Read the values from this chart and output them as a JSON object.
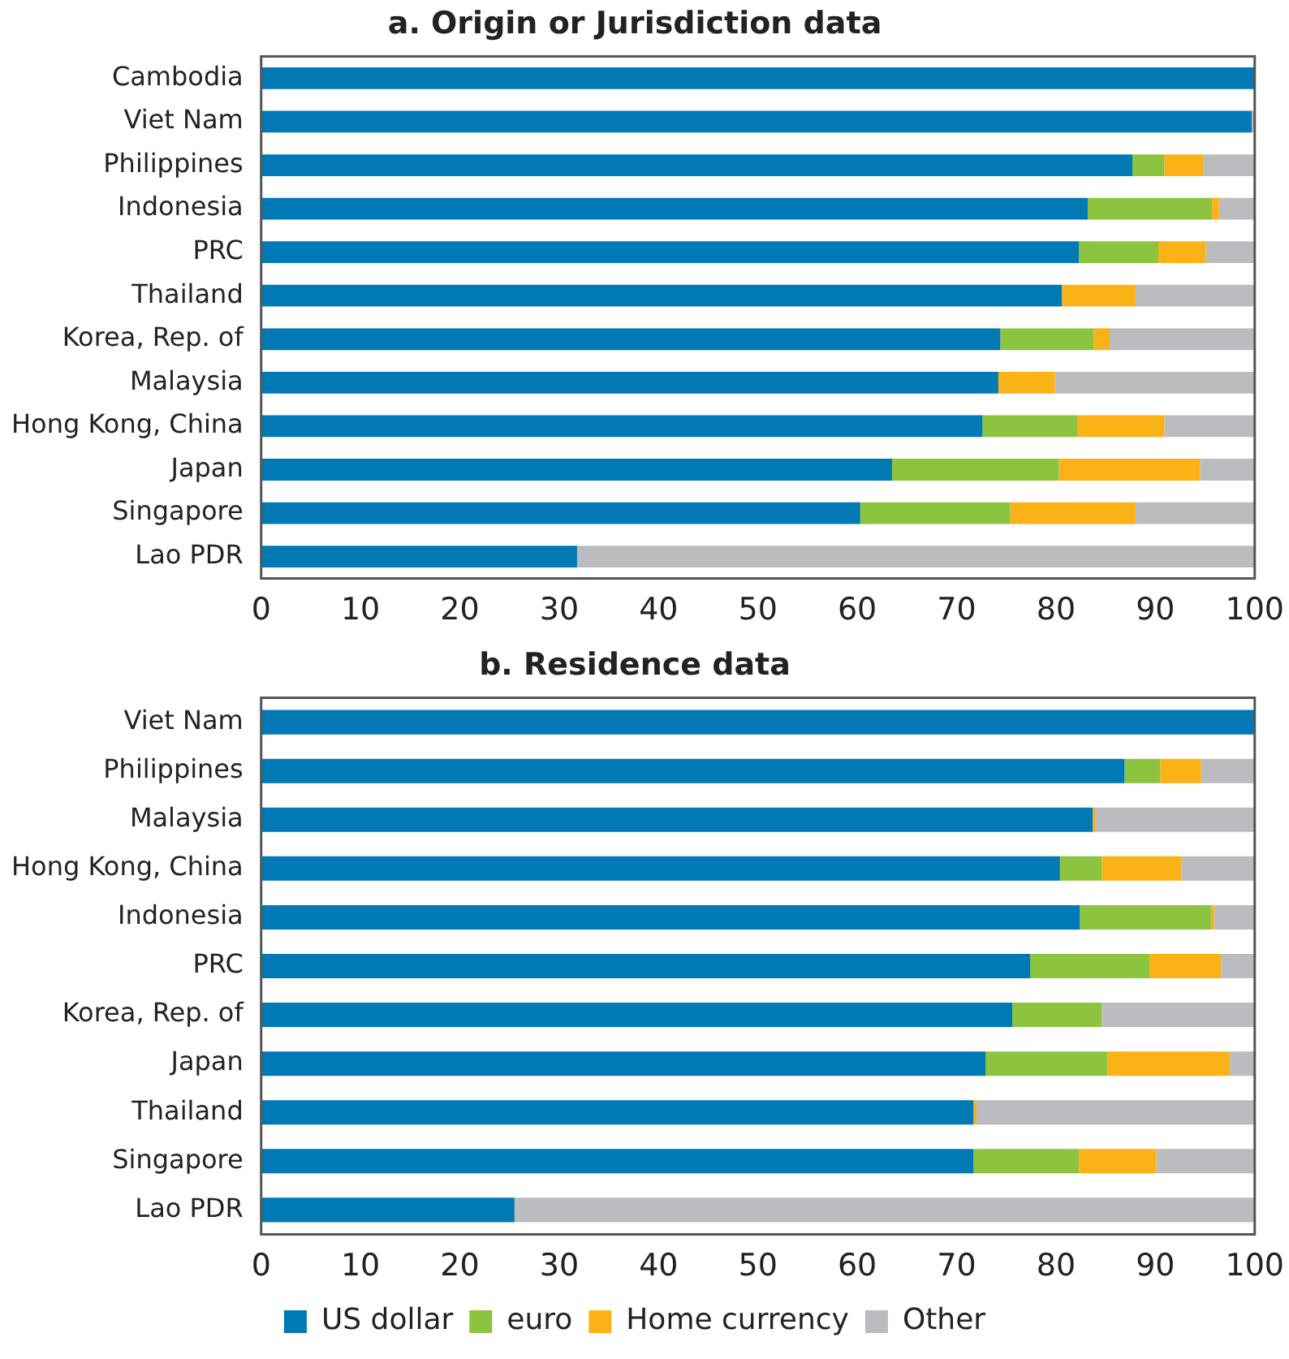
{
  "chart_data": [
    {
      "type": "bar",
      "title": "a. Origin or Jurisdiction data",
      "orientation": "horizontal",
      "stacked": true,
      "legend": false,
      "categories": [
        "Cambodia",
        "Viet Nam",
        "Philippines",
        "Indonesia",
        "PRC",
        "Thailand",
        "Korea, Rep. of",
        "Malaysia",
        "Hong Kong, China",
        "Japan",
        "Singapore",
        "Lao PDR"
      ],
      "xlim": [
        0,
        100
      ],
      "xticks": [
        0,
        10,
        20,
        30,
        40,
        50,
        60,
        70,
        80,
        90,
        100
      ],
      "series": [
        {
          "color": "#0079b5",
          "values": [
            100,
            99.7,
            87.7,
            83.2,
            82.3,
            80.6,
            74.4,
            74.2,
            72.6,
            63.5,
            60.3,
            31.8
          ]
        },
        {
          "color": "#8cc43f",
          "values": [
            0,
            0,
            3.2,
            12.5,
            8.0,
            0,
            9.4,
            0,
            9.6,
            16.8,
            15.1,
            0
          ]
        },
        {
          "color": "#fbb217",
          "values": [
            0,
            0,
            3.9,
            0.7,
            4.8,
            7.4,
            1.6,
            5.7,
            8.7,
            14.2,
            12.6,
            0
          ]
        },
        {
          "color": "#bbbcbf",
          "values": [
            0,
            0.3,
            5.2,
            3.6,
            4.9,
            12.0,
            14.6,
            20.1,
            9.1,
            5.5,
            12.0,
            68.2
          ]
        }
      ]
    },
    {
      "type": "bar",
      "title": "b. Residence data",
      "orientation": "horizontal",
      "stacked": true,
      "legend": "bottom",
      "categories": [
        "Viet Nam",
        "Philippines",
        "Malaysia",
        "Hong Kong, China",
        "Indonesia",
        "PRC",
        "Korea, Rep. of",
        "Japan",
        "Thailand",
        "Singapore",
        "Lao PDR"
      ],
      "xlim": [
        0,
        100
      ],
      "xticks": [
        0,
        10,
        20,
        30,
        40,
        50,
        60,
        70,
        80,
        90,
        100
      ],
      "series": [
        {
          "name": "US dollar",
          "color": "#0079b5",
          "values": [
            100,
            86.9,
            83.7,
            80.4,
            82.4,
            77.4,
            75.6,
            72.9,
            71.7,
            71.7,
            25.5
          ]
        },
        {
          "name": "euro",
          "color": "#8cc43f",
          "values": [
            0,
            3.6,
            0,
            4.2,
            13.2,
            12.0,
            9.0,
            12.3,
            0,
            10.6,
            0
          ]
        },
        {
          "name": "Home currency",
          "color": "#fbb217",
          "values": [
            0,
            4.1,
            0.3,
            8.0,
            0.3,
            7.2,
            0,
            12.3,
            0.3,
            7.8,
            0
          ]
        },
        {
          "name": "Other",
          "color": "#bbbcbf",
          "values": [
            0,
            5.4,
            16.0,
            7.4,
            4.1,
            3.4,
            15.4,
            2.5,
            28.0,
            9.9,
            74.5
          ]
        }
      ]
    }
  ]
}
